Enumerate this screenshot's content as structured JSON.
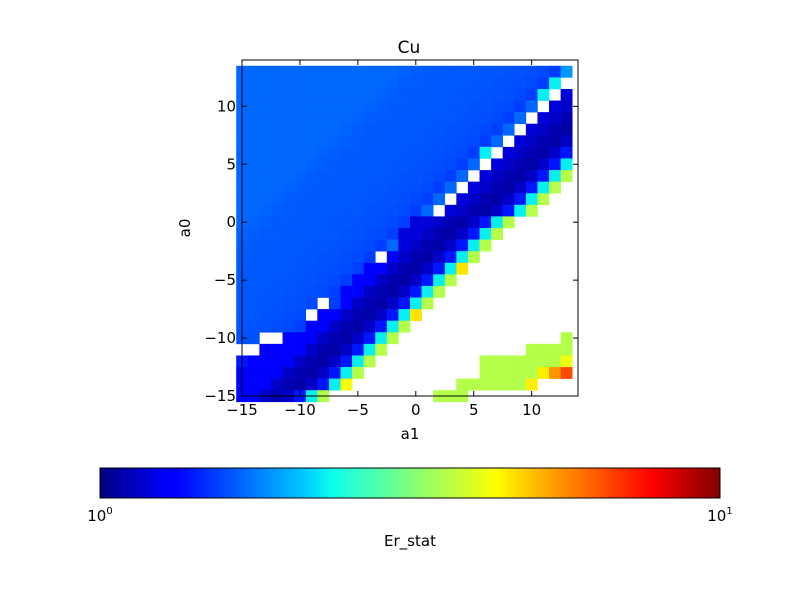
{
  "chart_data": {
    "type": "heatmap",
    "title": "Cu",
    "xlabel": "a1",
    "ylabel": "a0",
    "xlim": [
      -15,
      14
    ],
    "ylim": [
      -15,
      14
    ],
    "xticks": [
      -15,
      -10,
      -5,
      0,
      5,
      10
    ],
    "yticks": [
      -15,
      -10,
      -5,
      0,
      5,
      10
    ],
    "xtick_labels": [
      "−15",
      "−10",
      "−5",
      "0",
      "5",
      "10"
    ],
    "ytick_labels": [
      "−15",
      "−10",
      "−5",
      "0",
      "5",
      "10"
    ],
    "grid": false,
    "colormap": "jet",
    "colorbar": {
      "label": "Er_stat",
      "scale": "log",
      "range": [
        1,
        10
      ],
      "orientation": "horizontal",
      "placement": "bottom",
      "tick_labels": [
        {
          "base": "10",
          "exp": "0"
        },
        {
          "base": "10",
          "exp": "1"
        }
      ]
    },
    "cell_size": 1,
    "missing_value_color": "#ffffff",
    "x_values": [
      -15,
      -14,
      -13,
      -12,
      -11,
      -10,
      -9,
      -8,
      -7,
      -6,
      -5,
      -4,
      -3,
      -2,
      -1,
      0,
      1,
      2,
      3,
      4,
      5,
      6,
      7,
      8,
      9,
      10,
      11,
      12,
      13
    ],
    "y_values": [
      13,
      12,
      11,
      10,
      9,
      8,
      7,
      6,
      5,
      4,
      3,
      2,
      1,
      0,
      -1,
      -2,
      -3,
      -4,
      -5,
      -6,
      -7,
      -8,
      -9,
      -10,
      -11,
      -12,
      -13,
      -14,
      -15
    ],
    "z_rows": [
      [
        1.7,
        1.7,
        1.7,
        1.7,
        1.7,
        1.7,
        1.7,
        1.7,
        1.7,
        1.7,
        1.7,
        1.7,
        1.7,
        1.7,
        1.68,
        1.66,
        1.65,
        1.65,
        1.64,
        1.64,
        1.64,
        1.63,
        1.63,
        1.62,
        1.61,
        1.6,
        1.58,
        1.54,
        1.9
      ],
      [
        1.7,
        1.7,
        1.7,
        1.7,
        1.7,
        1.7,
        1.7,
        1.7,
        1.7,
        1.7,
        1.7,
        1.7,
        1.7,
        1.68,
        1.66,
        1.65,
        1.65,
        1.64,
        1.64,
        1.64,
        1.63,
        1.63,
        1.62,
        1.61,
        1.6,
        1.58,
        1.54,
        2.3,
        null
      ],
      [
        1.7,
        1.7,
        1.7,
        1.7,
        1.7,
        1.7,
        1.7,
        1.7,
        1.7,
        1.7,
        1.7,
        1.7,
        1.68,
        1.66,
        1.65,
        1.65,
        1.64,
        1.64,
        1.64,
        1.63,
        1.63,
        1.62,
        1.61,
        1.6,
        1.58,
        1.54,
        2.3,
        null,
        1.2
      ],
      [
        1.7,
        1.7,
        1.7,
        1.7,
        1.7,
        1.7,
        1.7,
        1.7,
        1.7,
        1.7,
        1.7,
        1.68,
        1.66,
        1.65,
        1.65,
        1.64,
        1.64,
        1.64,
        1.63,
        1.63,
        1.62,
        1.61,
        1.6,
        1.58,
        1.54,
        1.7,
        null,
        1.2,
        1.15
      ],
      [
        1.7,
        1.7,
        1.7,
        1.7,
        1.7,
        1.7,
        1.7,
        1.7,
        1.7,
        1.7,
        1.68,
        1.66,
        1.65,
        1.65,
        1.64,
        1.64,
        1.64,
        1.63,
        1.63,
        1.62,
        1.61,
        1.6,
        1.58,
        1.54,
        1.7,
        null,
        1.2,
        1.15,
        1.1
      ],
      [
        1.7,
        1.7,
        1.7,
        1.7,
        1.7,
        1.7,
        1.7,
        1.7,
        1.7,
        1.68,
        1.66,
        1.65,
        1.65,
        1.64,
        1.64,
        1.64,
        1.63,
        1.63,
        1.62,
        1.61,
        1.6,
        1.58,
        1.54,
        1.7,
        null,
        1.2,
        1.15,
        1.1,
        1.08
      ],
      [
        1.7,
        1.7,
        1.7,
        1.7,
        1.7,
        1.7,
        1.7,
        1.7,
        1.68,
        1.66,
        1.65,
        1.65,
        1.64,
        1.64,
        1.64,
        1.63,
        1.63,
        1.62,
        1.61,
        1.6,
        1.58,
        1.54,
        1.7,
        null,
        1.2,
        1.15,
        1.1,
        1.08,
        1.15
      ],
      [
        1.7,
        1.7,
        1.7,
        1.7,
        1.7,
        1.7,
        1.7,
        1.68,
        1.66,
        1.65,
        1.65,
        1.64,
        1.64,
        1.64,
        1.63,
        1.63,
        1.62,
        1.61,
        1.6,
        1.58,
        1.54,
        2.3,
        null,
        1.2,
        1.15,
        1.1,
        1.08,
        1.15,
        1.4
      ],
      [
        1.7,
        1.7,
        1.7,
        1.7,
        1.7,
        1.7,
        1.68,
        1.66,
        1.65,
        1.65,
        1.64,
        1.64,
        1.64,
        1.63,
        1.63,
        1.62,
        1.61,
        1.6,
        1.58,
        1.54,
        1.7,
        null,
        1.2,
        1.15,
        1.1,
        1.08,
        1.15,
        1.4,
        2.3
      ],
      [
        1.7,
        1.7,
        1.7,
        1.7,
        1.7,
        1.68,
        1.66,
        1.65,
        1.65,
        1.64,
        1.64,
        1.64,
        1.63,
        1.63,
        1.62,
        1.61,
        1.6,
        1.58,
        1.54,
        1.7,
        null,
        1.2,
        1.15,
        1.1,
        1.08,
        1.15,
        1.4,
        2.3,
        3.6
      ],
      [
        1.7,
        1.7,
        1.7,
        1.7,
        1.68,
        1.66,
        1.65,
        1.65,
        1.64,
        1.64,
        1.64,
        1.63,
        1.63,
        1.62,
        1.61,
        1.6,
        1.58,
        1.54,
        1.7,
        null,
        1.2,
        1.15,
        1.1,
        1.08,
        1.15,
        1.4,
        2.3,
        3.6,
        null
      ],
      [
        1.7,
        1.7,
        1.7,
        1.68,
        1.66,
        1.65,
        1.65,
        1.64,
        1.64,
        1.64,
        1.63,
        1.63,
        1.62,
        1.61,
        1.6,
        1.58,
        1.54,
        1.7,
        null,
        1.2,
        1.15,
        1.1,
        1.08,
        1.15,
        1.4,
        2.3,
        3.6,
        null,
        null
      ],
      [
        1.7,
        1.7,
        1.68,
        1.66,
        1.65,
        1.65,
        1.64,
        1.64,
        1.64,
        1.63,
        1.63,
        1.62,
        1.61,
        1.6,
        1.58,
        1.54,
        1.7,
        null,
        1.2,
        1.15,
        1.1,
        1.08,
        1.15,
        1.4,
        2.3,
        3.6,
        null,
        null,
        null
      ],
      [
        1.7,
        1.68,
        1.66,
        1.65,
        1.65,
        1.64,
        1.64,
        1.64,
        1.63,
        1.63,
        1.62,
        1.61,
        1.6,
        1.58,
        1.54,
        1.2,
        1.2,
        1.15,
        1.1,
        1.08,
        1.15,
        1.4,
        2.3,
        3.6,
        null,
        null,
        null,
        null,
        null
      ],
      [
        1.68,
        1.66,
        1.65,
        1.65,
        1.64,
        1.64,
        1.64,
        1.63,
        1.63,
        1.62,
        1.61,
        1.6,
        1.58,
        1.54,
        1.2,
        1.2,
        1.15,
        1.1,
        1.08,
        1.15,
        1.4,
        2.3,
        3.6,
        null,
        null,
        null,
        null,
        null,
        null
      ],
      [
        1.66,
        1.65,
        1.65,
        1.64,
        1.64,
        1.64,
        1.63,
        1.63,
        1.62,
        1.61,
        1.6,
        1.58,
        1.54,
        1.7,
        1.2,
        1.15,
        1.1,
        1.08,
        1.15,
        1.4,
        2.3,
        3.6,
        null,
        null,
        null,
        null,
        null,
        null,
        null
      ],
      [
        1.65,
        1.65,
        1.64,
        1.64,
        1.64,
        1.63,
        1.63,
        1.62,
        1.61,
        1.6,
        1.58,
        1.54,
        null,
        1.3,
        1.15,
        1.1,
        1.08,
        1.15,
        1.4,
        2.3,
        3.6,
        null,
        null,
        null,
        null,
        null,
        null,
        null,
        null
      ],
      [
        1.65,
        1.64,
        1.64,
        1.64,
        1.63,
        1.63,
        1.62,
        1.61,
        1.6,
        1.58,
        1.54,
        1.3,
        1.3,
        1.15,
        1.1,
        1.08,
        1.15,
        1.4,
        2.3,
        4.6,
        null,
        null,
        null,
        null,
        null,
        null,
        null,
        null,
        null
      ],
      [
        1.64,
        1.64,
        1.64,
        1.63,
        1.63,
        1.62,
        1.61,
        1.6,
        1.58,
        1.54,
        1.3,
        1.3,
        1.15,
        1.1,
        1.08,
        1.15,
        1.4,
        2.3,
        3.6,
        null,
        null,
        null,
        null,
        null,
        null,
        null,
        null,
        null,
        null
      ],
      [
        1.64,
        1.64,
        1.63,
        1.63,
        1.62,
        1.61,
        1.6,
        1.58,
        1.54,
        1.3,
        1.3,
        1.15,
        1.1,
        1.08,
        1.15,
        1.4,
        2.3,
        3.6,
        null,
        null,
        null,
        null,
        null,
        null,
        null,
        null,
        null,
        null,
        null
      ],
      [
        1.64,
        1.63,
        1.63,
        1.62,
        1.61,
        1.6,
        1.58,
        null,
        1.54,
        1.3,
        1.15,
        1.1,
        1.08,
        1.15,
        1.4,
        2.3,
        3.6,
        null,
        null,
        null,
        null,
        null,
        null,
        null,
        null,
        null,
        null,
        null,
        null
      ],
      [
        1.63,
        1.63,
        1.62,
        1.61,
        1.6,
        1.58,
        null,
        1.3,
        1.3,
        1.15,
        1.1,
        1.08,
        1.15,
        1.4,
        2.3,
        4.6,
        null,
        null,
        null,
        null,
        null,
        null,
        null,
        null,
        null,
        null,
        null,
        null,
        null
      ],
      [
        1.63,
        1.62,
        1.61,
        1.6,
        1.58,
        1.54,
        1.3,
        1.3,
        1.15,
        1.1,
        1.08,
        1.15,
        1.4,
        2.3,
        3.6,
        null,
        null,
        null,
        null,
        null,
        null,
        null,
        null,
        null,
        null,
        null,
        null,
        null,
        null
      ],
      [
        1.62,
        1.61,
        null,
        null,
        1.3,
        1.3,
        1.3,
        1.15,
        1.1,
        1.08,
        1.15,
        1.4,
        2.3,
        3.6,
        null,
        null,
        null,
        null,
        null,
        null,
        null,
        null,
        null,
        null,
        null,
        null,
        null,
        null,
        3.6
      ],
      [
        null,
        null,
        1.3,
        1.3,
        1.3,
        1.3,
        1.15,
        1.1,
        1.08,
        1.15,
        1.4,
        2.3,
        3.6,
        null,
        null,
        null,
        null,
        null,
        null,
        null,
        null,
        null,
        null,
        null,
        null,
        3.6,
        3.6,
        3.6,
        3.6
      ],
      [
        1.4,
        1.3,
        1.3,
        1.3,
        1.3,
        1.15,
        1.1,
        1.08,
        1.15,
        1.4,
        2.3,
        3.6,
        null,
        null,
        null,
        null,
        null,
        null,
        null,
        null,
        null,
        3.6,
        3.6,
        3.6,
        3.6,
        3.6,
        3.6,
        3.6,
        4.2
      ],
      [
        1.3,
        1.3,
        1.3,
        1.3,
        1.15,
        1.1,
        1.08,
        1.15,
        1.4,
        2.3,
        3.6,
        null,
        null,
        null,
        null,
        null,
        null,
        null,
        null,
        null,
        null,
        3.6,
        3.6,
        3.6,
        3.6,
        3.6,
        4.5,
        5.5,
        6.5
      ],
      [
        1.3,
        1.3,
        1.3,
        1.15,
        1.1,
        1.08,
        1.15,
        1.4,
        2.3,
        4.3,
        null,
        null,
        null,
        null,
        null,
        null,
        null,
        null,
        null,
        3.6,
        3.6,
        3.6,
        3.6,
        3.6,
        3.6,
        4.5,
        null,
        null,
        null
      ],
      [
        1.3,
        1.3,
        1.15,
        1.1,
        1.15,
        1.4,
        2.3,
        3.6,
        null,
        null,
        null,
        null,
        null,
        null,
        null,
        null,
        null,
        3.6,
        3.6,
        3.6,
        null,
        null,
        null,
        null,
        null,
        null,
        null,
        null,
        null
      ]
    ]
  }
}
